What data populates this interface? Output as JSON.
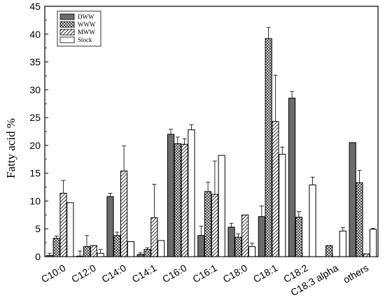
{
  "chart_data": {
    "type": "bar",
    "title": "",
    "xlabel": "",
    "ylabel": "Fatty acid %",
    "ylim": [
      0,
      45
    ],
    "yticks": [
      0,
      5,
      10,
      15,
      20,
      25,
      30,
      35,
      40,
      45
    ],
    "grid": false,
    "legend_position": "top-left",
    "categories": [
      "C10:0",
      "C12:0",
      "C14:0",
      "C14:1",
      "C16:0",
      "C16:1",
      "C18:0",
      "C18:1",
      "C18:2",
      "C18:3 alpha",
      "others"
    ],
    "series": [
      {
        "name": "DWW",
        "pattern": "solid-gray",
        "color": "#6b6b6b",
        "values": [
          0.2,
          0.1,
          10.8,
          0.4,
          22.0,
          3.8,
          5.3,
          7.2,
          28.5,
          0,
          20.5
        ],
        "errors": [
          0.4,
          0.9,
          0.6,
          0.3,
          0.9,
          1.7,
          0.7,
          1.9,
          1.2,
          0,
          0
        ]
      },
      {
        "name": "WWW",
        "pattern": "crosshatch",
        "values": [
          3.3,
          1.8,
          3.8,
          1.3,
          20.3,
          11.7,
          3.5,
          39.2,
          7.1,
          2.0,
          13.3
        ],
        "errors": [
          0.4,
          2.0,
          0.6,
          0.3,
          1.2,
          1.7,
          0.6,
          2.0,
          1.0,
          0,
          2.2
        ]
      },
      {
        "name": "MWW",
        "pattern": "diagonal",
        "values": [
          11.4,
          2.0,
          15.4,
          7.0,
          20.2,
          11.2,
          7.5,
          24.3,
          0,
          0,
          0.5
        ],
        "errors": [
          2.3,
          0,
          4.5,
          6.0,
          1.0,
          6.0,
          0,
          8.3,
          0,
          0,
          0
        ]
      },
      {
        "name": "Stock",
        "pattern": "white",
        "values": [
          9.7,
          0.6,
          2.7,
          2.9,
          22.8,
          18.2,
          1.8,
          18.4,
          12.9,
          4.6,
          4.9
        ],
        "errors": [
          0,
          0.7,
          0,
          0,
          0.9,
          0,
          0.6,
          1.3,
          1.4,
          0.6,
          0.2
        ]
      }
    ]
  }
}
